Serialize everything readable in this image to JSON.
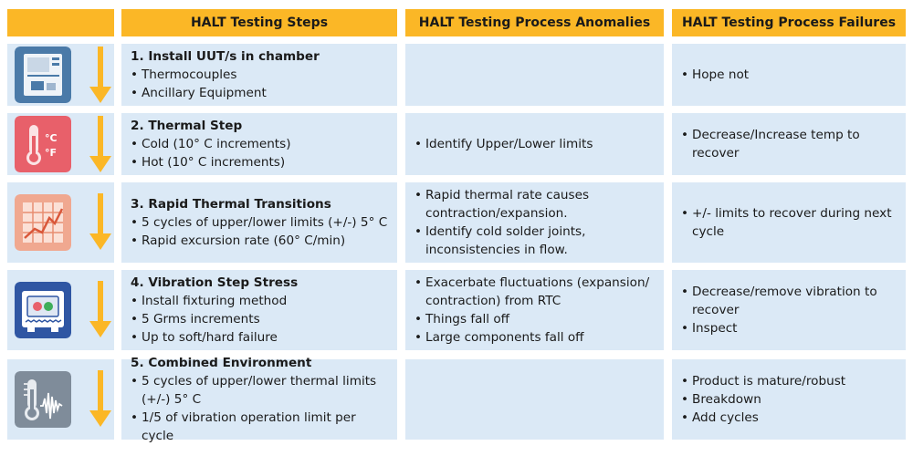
{
  "headers": {
    "steps": "HALT Testing Steps",
    "anomalies": "HALT Testing Process Anomalies",
    "failures": "HALT Testing Process Failures"
  },
  "colors": {
    "header": "#fbb726",
    "cell": "#dbe9f6",
    "arrow": "#fbb726",
    "icon_chamber": "#4a7aa8",
    "icon_thermal": "#e8606a",
    "icon_transitions": "#f0a890",
    "icon_vibration": "#2f56a3",
    "icon_combined": "#7f8c9a"
  },
  "rows": [
    {
      "icon": "chamber-icon",
      "title": "1. Install UUT/s in chamber",
      "steps": [
        "Thermocouples",
        "Ancillary Equipment"
      ],
      "anomalies": [],
      "failures": [
        "Hope not"
      ]
    },
    {
      "icon": "thermometer-icon",
      "icon_text": [
        "°C",
        "°F"
      ],
      "title": "2. Thermal Step",
      "steps": [
        "Cold (10° C increments)",
        "Hot (10° C increments)"
      ],
      "anomalies": [
        "Identify Upper/Lower limits"
      ],
      "failures": [
        "Decrease/Increase temp to recover"
      ]
    },
    {
      "icon": "chart-grid-icon",
      "title": "3. Rapid Thermal Transitions",
      "steps": [
        "5 cycles of upper/lower limits (+/-) 5° C",
        "Rapid excursion rate (60° C/min)"
      ],
      "anomalies": [
        "Rapid thermal rate causes contraction/expansion.",
        "Identify cold solder joints, inconsistencies in flow."
      ],
      "failures": [
        "+/- limits to recover during next cycle"
      ]
    },
    {
      "icon": "vibration-table-icon",
      "title": "4. Vibration Step Stress",
      "steps": [
        "Install fixturing method",
        "5 Grms increments",
        "Up to soft/hard failure"
      ],
      "anomalies": [
        "Exacerbate fluctuations (expansion/ contraction) from RTC",
        "Things fall off",
        "Large components fall off"
      ],
      "failures": [
        "Decrease/remove vibration to recover",
        "Inspect"
      ]
    },
    {
      "icon": "combined-environment-icon",
      "title": "5. Combined Environment",
      "steps": [
        "5 cycles of upper/lower thermal limits (+/-) 5° C",
        "1/5 of vibration operation limit per cycle"
      ],
      "anomalies": [],
      "failures": [
        "Product is mature/robust",
        "Breakdown",
        "Add cycles"
      ]
    }
  ]
}
